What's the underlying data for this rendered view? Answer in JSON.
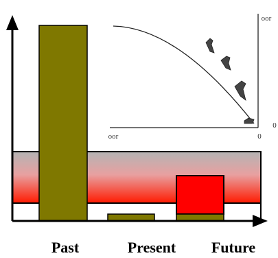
{
  "labels": [
    "Past",
    "Present",
    "Future"
  ],
  "inset": {
    "top_right": "oor",
    "bottom_left": "oor",
    "bottom_right": "0",
    "right": "0"
  }
}
